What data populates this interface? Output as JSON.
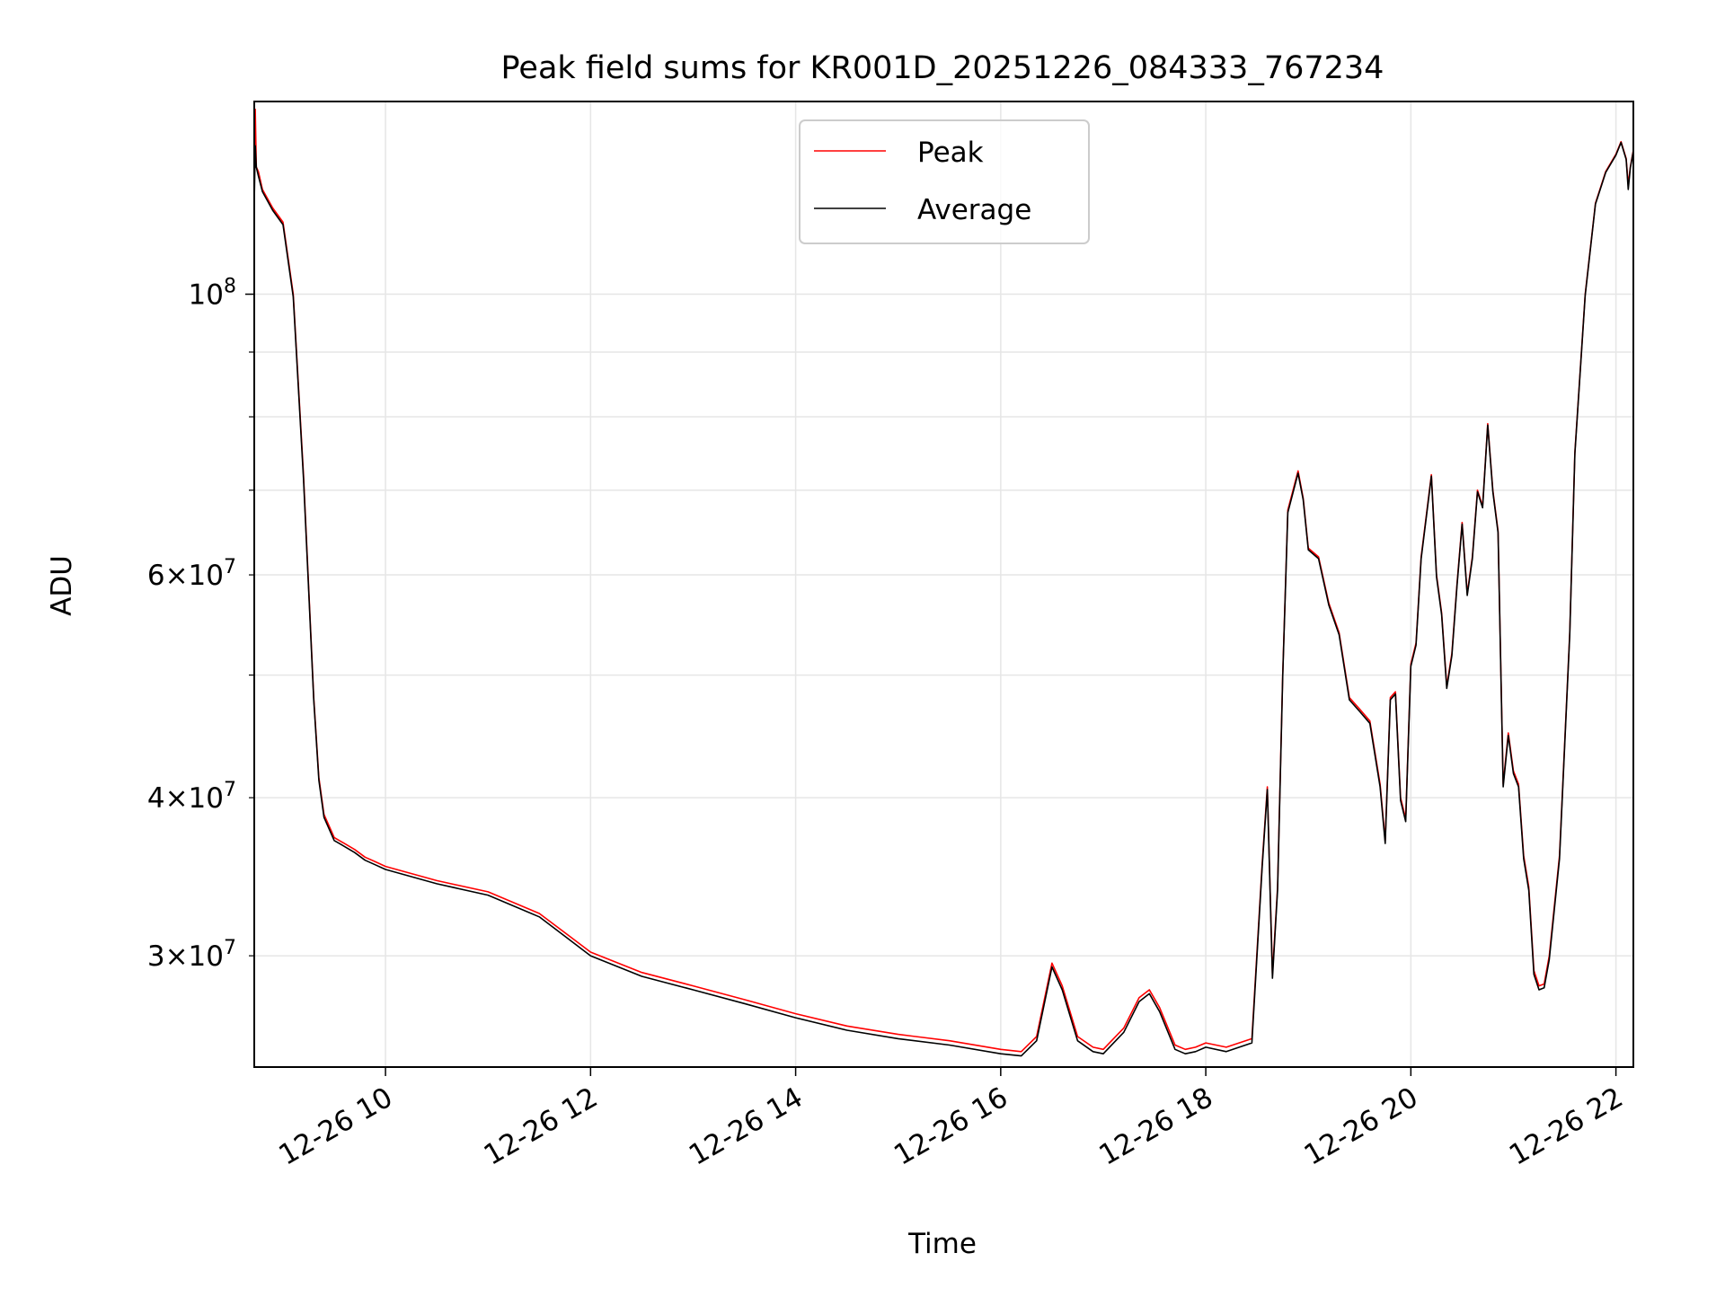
{
  "chart_data": {
    "type": "line",
    "title": "Peak field sums for KR001D_20251226_084333_767234",
    "xlabel": "Time",
    "ylabel": "ADU",
    "yscale": "log",
    "grid": true,
    "legend_position": "top-center",
    "x_unit": "hours on 2025-12-26",
    "xlim": [
      8.72,
      22.17
    ],
    "ylim": [
      24500000,
      142000000
    ],
    "x_ticks": [
      {
        "value": 10,
        "label": "12-26 10"
      },
      {
        "value": 12,
        "label": "12-26 12"
      },
      {
        "value": 14,
        "label": "12-26 14"
      },
      {
        "value": 16,
        "label": "12-26 16"
      },
      {
        "value": 18,
        "label": "12-26 18"
      },
      {
        "value": 20,
        "label": "12-26 20"
      },
      {
        "value": 22,
        "label": "12-26 22"
      }
    ],
    "y_major_ticks": [
      {
        "value": 100000000,
        "base": "10",
        "exp": "8"
      }
    ],
    "y_minor_ticks": [
      {
        "value": 30000000,
        "mant": "3",
        "exp": "7"
      },
      {
        "value": 40000000,
        "mant": "4",
        "exp": "7"
      },
      {
        "value": 50000000,
        "mant": "",
        "exp": ""
      },
      {
        "value": 60000000,
        "mant": "6",
        "exp": "7"
      },
      {
        "value": 70000000,
        "mant": "",
        "exp": ""
      },
      {
        "value": 80000000,
        "mant": "",
        "exp": ""
      },
      {
        "value": 90000000,
        "mant": "",
        "exp": ""
      }
    ],
    "series": [
      {
        "name": "Peak",
        "color": "#ff0000",
        "x": [
          8.72,
          8.73,
          8.74,
          8.76,
          8.8,
          8.9,
          9.0,
          9.1,
          9.2,
          9.3,
          9.35,
          9.4,
          9.5,
          9.55,
          9.6,
          9.65,
          9.7,
          9.8,
          9.9,
          10.0,
          10.5,
          11.0,
          11.5,
          12.0,
          12.5,
          13.0,
          13.5,
          14.0,
          14.5,
          15.0,
          15.5,
          16.0,
          16.2,
          16.35,
          16.5,
          16.6,
          16.75,
          16.9,
          17.0,
          17.2,
          17.35,
          17.45,
          17.55,
          17.7,
          17.8,
          17.9,
          18.0,
          18.2,
          18.45,
          18.55,
          18.6,
          18.65,
          18.7,
          18.75,
          18.8,
          18.9,
          18.95,
          19.0,
          19.1,
          19.2,
          19.3,
          19.4,
          19.5,
          19.6,
          19.7,
          19.75,
          19.8,
          19.85,
          19.9,
          19.95,
          20.0,
          20.05,
          20.1,
          20.2,
          20.25,
          20.3,
          20.35,
          20.4,
          20.45,
          20.5,
          20.55,
          20.6,
          20.65,
          20.7,
          20.75,
          20.8,
          20.85,
          20.9,
          20.95,
          21.0,
          21.05,
          21.1,
          21.15,
          21.2,
          21.25,
          21.3,
          21.35,
          21.45,
          21.55,
          21.6,
          21.7,
          21.8,
          21.9,
          22.0,
          22.05,
          22.1,
          22.12,
          22.14,
          22.17
        ],
        "y": [
          128000000,
          140000000,
          126000000,
          125000000,
          121000000,
          117000000,
          114000000,
          100000000,
          72000000,
          48000000,
          41500000,
          38800000,
          37200000,
          37000000,
          36800000,
          36600000,
          36400000,
          35900000,
          35600000,
          35300000,
          34400000,
          33700000,
          32400000,
          30200000,
          29100000,
          28400000,
          27700000,
          27000000,
          26400000,
          26000000,
          25700000,
          25300000,
          25200000,
          25900000,
          29600000,
          28400000,
          25900000,
          25400000,
          25300000,
          26300000,
          27800000,
          28200000,
          27300000,
          25500000,
          25300000,
          25400000,
          25600000,
          25400000,
          25800000,
          35500000,
          40800000,
          29000000,
          34000000,
          50000000,
          67500000,
          72500000,
          69000000,
          63000000,
          62000000,
          57000000,
          54000000,
          48000000,
          47000000,
          46000000,
          41000000,
          37000000,
          48000000,
          48500000,
          40000000,
          38500000,
          51000000,
          53000000,
          62000000,
          72000000,
          60000000,
          56000000,
          49000000,
          52000000,
          59000000,
          66000000,
          58000000,
          62000000,
          70000000,
          68000000,
          79000000,
          70000000,
          65000000,
          41000000,
          45000000,
          42000000,
          41000000,
          36000000,
          34000000,
          29200000,
          28400000,
          28500000,
          30000000,
          36000000,
          54000000,
          75000000,
          100000000,
          118000000,
          125000000,
          129000000,
          132000000,
          128000000,
          122000000,
          126000000,
          130000000
        ]
      },
      {
        "name": "Average",
        "color": "#000000",
        "x": [
          8.72,
          8.73,
          8.74,
          8.76,
          8.8,
          8.9,
          9.0,
          9.1,
          9.2,
          9.3,
          9.35,
          9.4,
          9.5,
          9.55,
          9.6,
          9.65,
          9.7,
          9.8,
          9.9,
          10.0,
          10.5,
          11.0,
          11.5,
          12.0,
          12.5,
          13.0,
          13.5,
          14.0,
          14.5,
          15.0,
          15.5,
          16.0,
          16.2,
          16.35,
          16.5,
          16.6,
          16.75,
          16.9,
          17.0,
          17.2,
          17.35,
          17.45,
          17.55,
          17.7,
          17.8,
          17.9,
          18.0,
          18.2,
          18.45,
          18.55,
          18.6,
          18.65,
          18.7,
          18.75,
          18.8,
          18.9,
          18.95,
          19.0,
          19.1,
          19.2,
          19.3,
          19.4,
          19.5,
          19.6,
          19.7,
          19.75,
          19.8,
          19.85,
          19.9,
          19.95,
          20.0,
          20.05,
          20.1,
          20.2,
          20.25,
          20.3,
          20.35,
          20.4,
          20.45,
          20.5,
          20.55,
          20.6,
          20.65,
          20.7,
          20.75,
          20.8,
          20.85,
          20.9,
          20.95,
          21.0,
          21.05,
          21.1,
          21.15,
          21.2,
          21.25,
          21.3,
          21.35,
          21.45,
          21.55,
          21.6,
          21.7,
          21.8,
          21.9,
          22.0,
          22.05,
          22.1,
          22.12,
          22.14,
          22.17
        ],
        "y": [
          118000000,
          131000000,
          126000000,
          124000000,
          120500000,
          116500000,
          113500000,
          99500000,
          71500000,
          47800000,
          41300000,
          38600000,
          37000000,
          36800000,
          36600000,
          36400000,
          36200000,
          35700000,
          35400000,
          35100000,
          34200000,
          33500000,
          32200000,
          30000000,
          28900000,
          28200000,
          27500000,
          26800000,
          26200000,
          25800000,
          25500000,
          25100000,
          25000000,
          25700000,
          29400000,
          28200000,
          25700000,
          25200000,
          25100000,
          26100000,
          27600000,
          28000000,
          27100000,
          25300000,
          25100000,
          25200000,
          25400000,
          25200000,
          25600000,
          35300000,
          40600000,
          28800000,
          33800000,
          49800000,
          67200000,
          72200000,
          68800000,
          62800000,
          61800000,
          56800000,
          53800000,
          47800000,
          46800000,
          45800000,
          40800000,
          36800000,
          47800000,
          48300000,
          39800000,
          38300000,
          50800000,
          52800000,
          61800000,
          71800000,
          59800000,
          55800000,
          48800000,
          51800000,
          58800000,
          65800000,
          57800000,
          61800000,
          69800000,
          67800000,
          78800000,
          69800000,
          64800000,
          40800000,
          44800000,
          41800000,
          40800000,
          35800000,
          33800000,
          29000000,
          28200000,
          28300000,
          29800000,
          35800000,
          53800000,
          74800000,
          99800000,
          117800000,
          124800000,
          128800000,
          131800000,
          127800000,
          121000000,
          125800000,
          129800000
        ]
      }
    ]
  }
}
